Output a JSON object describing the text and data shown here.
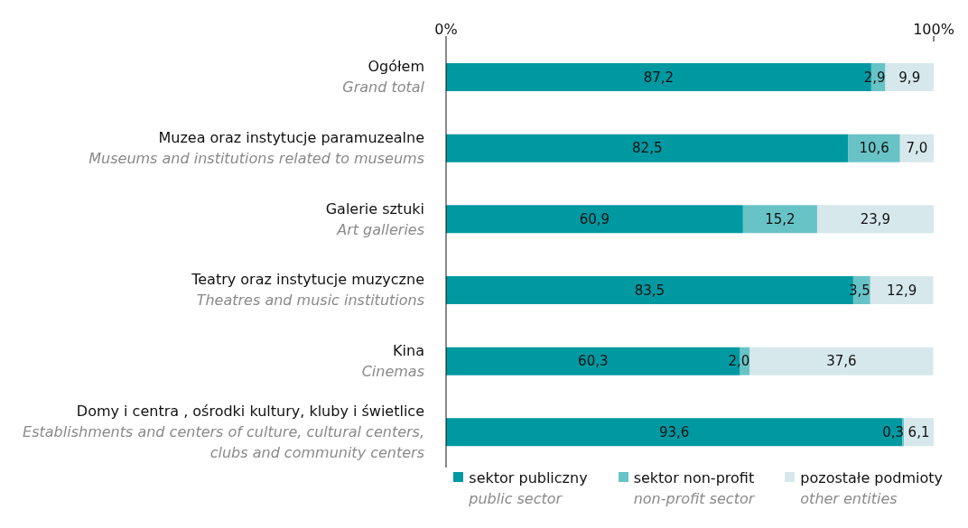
{
  "chart_data": {
    "type": "bar",
    "orientation": "horizontal",
    "stacked": true,
    "categories": [
      "Ogółem\nGrand total",
      "Muzea oraz instytucje paramuzealne\nMuseums and institutions related to museums",
      "Galerie sztuki\nArt galleries",
      "Teatry oraz instytucje muzyczne\nTheatres and music institutions",
      "Kina\nCinemas",
      "Domy i centra , ośrodki kultury, kluby i świetlice\nEstablishments and centers of culture, cultural centers,\nclubs and community centers"
    ],
    "series": [
      {
        "name": "sektor publiczny\npublic sector",
        "color": "#0098a1",
        "values": [
          87.2,
          82.5,
          60.9,
          83.5,
          60.3,
          93.6
        ],
        "value_labels": [
          "87,2",
          "82,5",
          "60,9",
          "83,5",
          "60,3",
          "93,6"
        ]
      },
      {
        "name": "sektor non-profit\nnon-profit sector",
        "color": "#68c3c7",
        "values": [
          2.9,
          10.6,
          15.2,
          3.5,
          2.0,
          0.3
        ],
        "value_labels": [
          "2,9",
          "10,6",
          "15,2",
          "3,5",
          "2,0",
          "0,3"
        ]
      },
      {
        "name": "pozostałe podmioty\nother entities",
        "color": "#d6e8ec",
        "values": [
          9.9,
          7.0,
          23.9,
          12.9,
          37.6,
          6.1
        ],
        "value_labels": [
          "9,9",
          "7,0",
          "23,9",
          "12,9",
          "37,6",
          "6,1"
        ]
      }
    ],
    "xlim": [
      0,
      100
    ],
    "xticks": [
      {
        "value": 0,
        "label": "0%"
      },
      {
        "value": 100,
        "label": "100%"
      }
    ],
    "grid": false,
    "legend": "bottom right"
  }
}
